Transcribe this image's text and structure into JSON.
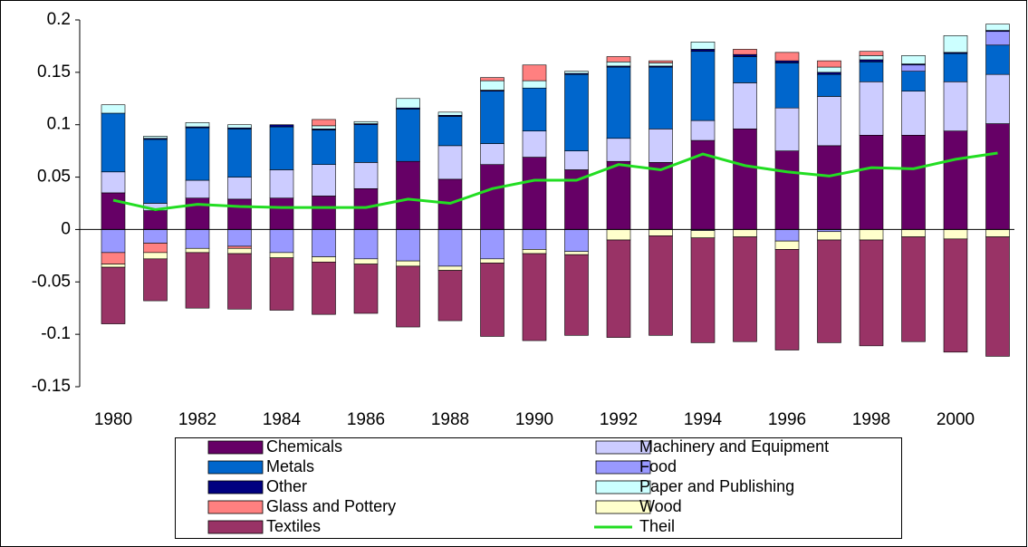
{
  "chart_data": {
    "type": "stacked-bar",
    "categories": [
      "1980",
      null,
      "1982",
      null,
      "1984",
      null,
      "1986",
      null,
      "1988",
      null,
      "1990",
      null,
      "1992",
      null,
      "1994",
      null,
      "1996",
      null,
      "1998",
      null,
      "2000",
      null
    ],
    "ylim": [
      -0.15,
      0.2
    ],
    "yticks": [
      -0.15,
      -0.1,
      -0.05,
      0,
      0.05,
      0.1,
      0.15,
      0.2
    ],
    "legend": "bottom",
    "series": [
      {
        "name": "Chemicals",
        "color": "#660066",
        "values": [
          0.035,
          0.018,
          0.03,
          0.029,
          0.03,
          0.032,
          0.039,
          0.065,
          0.048,
          0.062,
          0.069,
          0.057,
          0.065,
          0.064,
          0.085,
          0.096,
          0.075,
          0.08,
          0.09,
          0.09,
          0.094,
          0.101
        ]
      },
      {
        "name": "Machinery and Equipment",
        "color": "#ccccff",
        "values": [
          0.02,
          0.007,
          0.017,
          0.021,
          0.027,
          0.03,
          0.025,
          0,
          0.032,
          0.02,
          0.025,
          0.018,
          0.022,
          0.032,
          0.019,
          0.044,
          0.041,
          0.047,
          0.051,
          0.042,
          0.047,
          0.047
        ]
      },
      {
        "name": "Metals",
        "color": "#0066cc",
        "values": [
          0.056,
          0.061,
          0.05,
          0.046,
          0.041,
          0.033,
          0.036,
          0.05,
          0.028,
          0.05,
          0.041,
          0.073,
          0.068,
          0.059,
          0.066,
          0.025,
          0.043,
          0.021,
          0.019,
          0.019,
          0.027,
          0.028
        ]
      },
      {
        "name": "Food",
        "color": "#9999ff",
        "values": [
          -0.022,
          -0.013,
          -0.018,
          -0.016,
          -0.022,
          -0.026,
          -0.028,
          -0.03,
          -0.035,
          -0.028,
          -0.019,
          -0.021,
          0,
          0,
          -0.001,
          0,
          -0.011,
          -0.002,
          0,
          0.006,
          0,
          0.013
        ]
      },
      {
        "name": "Other",
        "color": "#000080",
        "values": [
          0,
          0.001,
          0.001,
          0.001,
          0.002,
          0.001,
          0.001,
          0.001,
          0.001,
          0.001,
          0,
          0.001,
          0.001,
          0.001,
          0.002,
          0.002,
          0.002,
          0.002,
          0.002,
          0.001,
          0.001,
          0.001
        ]
      },
      {
        "name": "Paper and Publishing",
        "color": "#ccffff",
        "values": [
          0.008,
          0.002,
          0.004,
          0.003,
          0,
          0.003,
          0.002,
          0.009,
          0.003,
          0.009,
          0.007,
          0.002,
          0.004,
          0.003,
          0.007,
          0,
          0,
          0.005,
          0.004,
          0.008,
          0.016,
          0.006
        ]
      },
      {
        "name": "Glass and Pottery",
        "color": "#ff8080",
        "values": [
          -0.011,
          -0.009,
          0,
          -0.002,
          0,
          0.006,
          0,
          0,
          0,
          0.003,
          0.015,
          0,
          0.005,
          0.002,
          0,
          0.005,
          0.008,
          0.006,
          0.004,
          0,
          0,
          0
        ]
      },
      {
        "name": "Wood",
        "color": "#ffffcc",
        "values": [
          -0.003,
          -0.006,
          -0.004,
          -0.005,
          -0.005,
          -0.005,
          -0.005,
          -0.005,
          -0.004,
          -0.004,
          -0.004,
          -0.003,
          -0.01,
          -0.006,
          -0.007,
          -0.007,
          -0.008,
          -0.008,
          -0.01,
          -0.007,
          -0.009,
          -0.007
        ]
      },
      {
        "name": "Textiles",
        "color": "#993366",
        "values": [
          -0.054,
          -0.04,
          -0.053,
          -0.053,
          -0.05,
          -0.05,
          -0.047,
          -0.058,
          -0.048,
          -0.07,
          -0.083,
          -0.077,
          -0.093,
          -0.095,
          -0.1,
          -0.1,
          -0.096,
          -0.098,
          -0.101,
          -0.1,
          -0.108,
          -0.114
        ]
      },
      {
        "name": "Theil",
        "color": "#22dd22",
        "type": "line",
        "values": [
          0.028,
          0.019,
          0.024,
          0.022,
          0.021,
          0.021,
          0.021,
          0.029,
          0.025,
          0.039,
          0.047,
          0.047,
          0.062,
          0.057,
          0.072,
          0.061,
          0.055,
          0.051,
          0.059,
          0.058,
          0.067,
          0.073
        ]
      }
    ]
  }
}
